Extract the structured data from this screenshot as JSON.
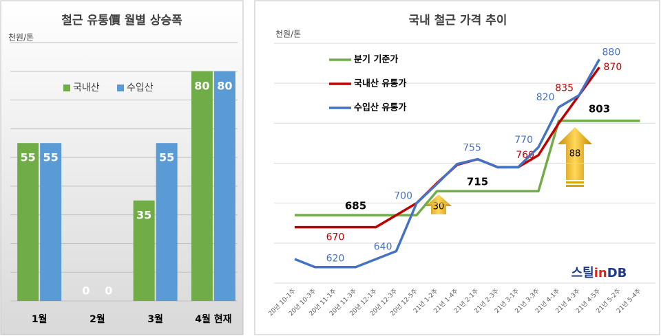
{
  "chart_data": [
    {
      "type": "bar",
      "title": "철근 유통價 월별 상승폭",
      "y_unit": "천원/톤",
      "categories": [
        "1월",
        "2월",
        "3월",
        "4월 현재"
      ],
      "series": [
        {
          "name": "국내산",
          "color": "#70ad47",
          "values": [
            55,
            0,
            35,
            80
          ]
        },
        {
          "name": "수입산",
          "color": "#5b9bd5",
          "values": [
            55,
            0,
            55,
            80
          ]
        }
      ],
      "ylim": [
        0,
        90
      ],
      "yticks": [
        0,
        10,
        20,
        30,
        40,
        50,
        60,
        70,
        80,
        90
      ],
      "show_ytick_labels": false,
      "grid": true,
      "legend": "top",
      "data_labels": true
    },
    {
      "type": "line",
      "title": "국내 철근 가격 추이",
      "y_unit": "천원/톤",
      "categories": [
        "20년 10-1주",
        "20년 10-3주",
        "20년 11-1주",
        "20년 11-3주",
        "20년 12-1주",
        "20년 12-3주",
        "20년 12-5주",
        "21년 1-2주",
        "21년 1-4주",
        "21년 2-1주",
        "21년 2-3주",
        "21년 3-1주",
        "21년 3-3주",
        "21년 4-1주",
        "21년 4-3주",
        "21년 4-5주",
        "21년 5-2주",
        "21년 5-4주"
      ],
      "series": [
        {
          "name": "분기 기준가",
          "color": "#70ad47",
          "values": [
            685,
            685,
            685,
            685,
            685,
            685,
            685,
            715,
            715,
            715,
            715,
            715,
            715,
            803,
            803,
            803,
            803,
            803
          ],
          "value_labels": [
            null,
            null,
            null,
            "685",
            null,
            null,
            null,
            null,
            null,
            "715",
            null,
            null,
            null,
            null,
            null,
            "803",
            null,
            null
          ]
        },
        {
          "name": "국내산 유통가",
          "color": "#c00000",
          "values": [
            670,
            670,
            670,
            670,
            670,
            685,
            700,
            725,
            748,
            755,
            745,
            745,
            760,
            800,
            835,
            870,
            null,
            null
          ],
          "value_labels": [
            null,
            null,
            "670",
            null,
            null,
            null,
            null,
            null,
            null,
            null,
            null,
            null,
            "760",
            null,
            "835",
            "870",
            null,
            null
          ]
        },
        {
          "name": "수입산 유통가",
          "color": "#4472c4",
          "values": [
            630,
            620,
            620,
            620,
            630,
            640,
            700,
            724,
            749,
            755,
            745,
            745,
            770,
            820,
            835,
            880,
            null,
            null
          ],
          "value_labels": [
            null,
            null,
            "620",
            null,
            null,
            "640",
            "700",
            null,
            null,
            "755",
            null,
            null,
            "770",
            "820",
            null,
            "880",
            null,
            null
          ]
        }
      ],
      "ylim": [
        600,
        900
      ],
      "yticks": [
        600,
        650,
        700,
        750,
        800,
        850,
        900
      ],
      "show_ytick_labels": false,
      "grid": true,
      "legend": "upper left",
      "annotations": [
        {
          "text": "30"
        },
        {
          "text": "88"
        }
      ],
      "watermark": [
        "스틸",
        "in",
        "DB"
      ]
    }
  ]
}
